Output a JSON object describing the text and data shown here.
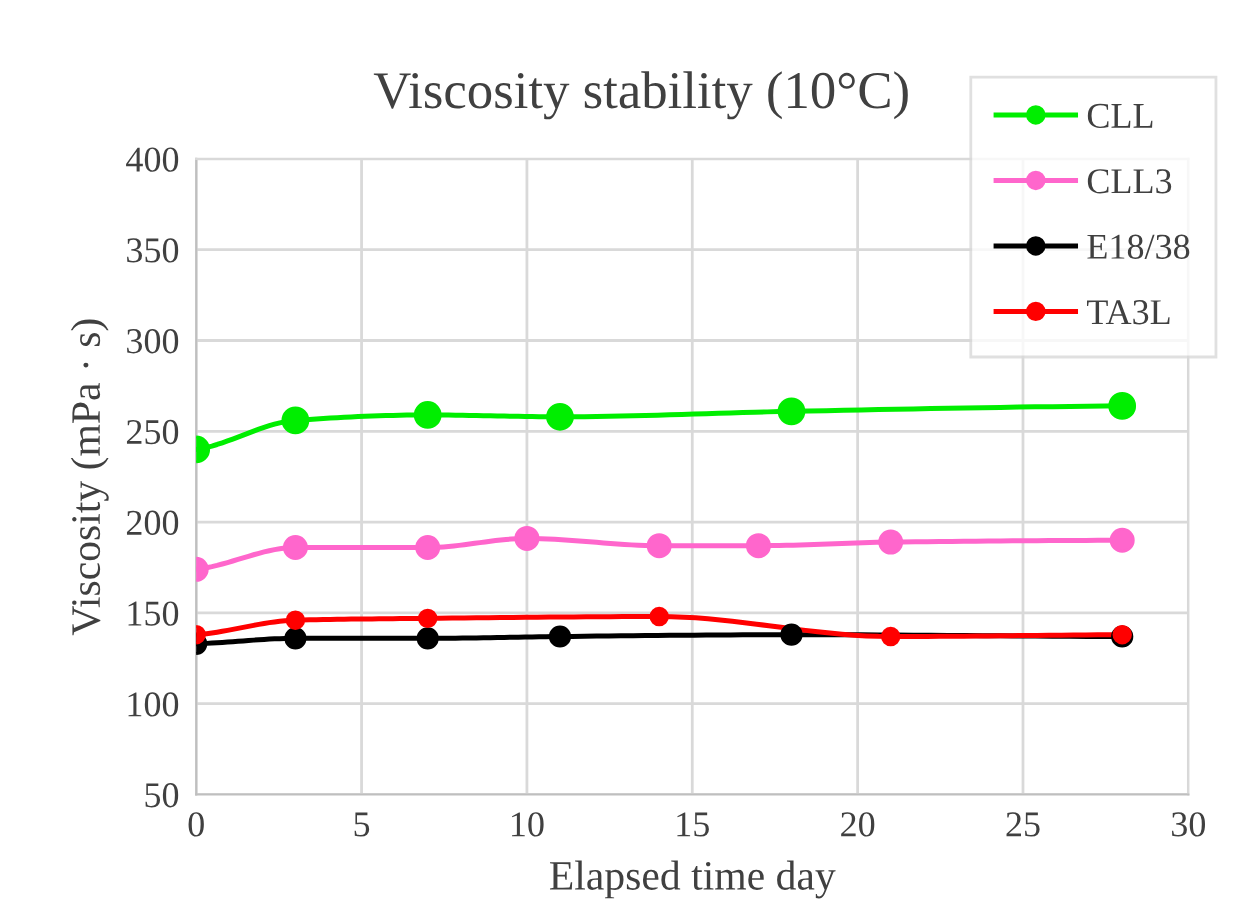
{
  "chart_data": {
    "type": "line",
    "title": "Viscosity stability (10°C)",
    "xlabel": "Elapsed time day",
    "ylabel": "Viscosity (mPa · s)",
    "xlim": [
      0,
      30
    ],
    "xticks": [
      0,
      5,
      10,
      15,
      20,
      25,
      30
    ],
    "ylim": [
      50,
      400
    ],
    "yticks": [
      50,
      100,
      150,
      200,
      250,
      300,
      350,
      400
    ],
    "grid": true,
    "legend": "top right",
    "marker": "circle",
    "line_style": "solid",
    "series": [
      {
        "name": "CLL",
        "color": "#00ee00",
        "x": [
          0,
          3,
          7,
          11,
          18,
          28
        ],
        "values": [
          240,
          256,
          259,
          258,
          261,
          264
        ]
      },
      {
        "name": "CLL3",
        "color": "#ff66cc",
        "x": [
          0,
          3,
          7,
          10,
          14,
          17,
          21,
          28
        ],
        "values": [
          174,
          186,
          186,
          191,
          187,
          187,
          189,
          190
        ]
      },
      {
        "name": "E18/38",
        "color": "#000000",
        "x": [
          0,
          3,
          7,
          11,
          18,
          28
        ],
        "values": [
          133,
          136,
          136,
          137,
          138,
          137
        ]
      },
      {
        "name": "TA3L",
        "color": "#ff0000",
        "x": [
          0,
          3,
          7,
          14,
          21,
          28
        ],
        "values": [
          138,
          146,
          147,
          148,
          137,
          138
        ]
      }
    ]
  }
}
